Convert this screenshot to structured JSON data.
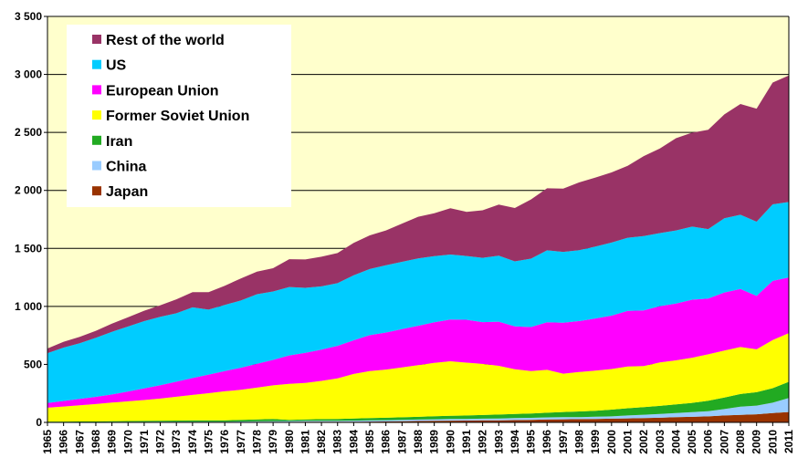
{
  "chart_data": {
    "type": "area",
    "stacked": true,
    "title": "",
    "xlabel": "",
    "ylabel": "",
    "ylim": [
      0,
      3500
    ],
    "yticks": [
      0,
      500,
      1000,
      1500,
      2000,
      2500,
      3000,
      3500
    ],
    "ytick_labels": [
      "0",
      "500",
      "1 000",
      "1 500",
      "2 000",
      "2 500",
      "3 000",
      "3 500"
    ],
    "grid": "horizontal",
    "legend_position": "top-left",
    "plot_background": "#ffffcc",
    "x": [
      "1965",
      "1966",
      "1967",
      "1968",
      "1969",
      "1970",
      "1971",
      "1972",
      "1973",
      "1974",
      "1975",
      "1976",
      "1977",
      "1978",
      "1979",
      "1980",
      "1981",
      "1982",
      "1983",
      "1984",
      "1985",
      "1986",
      "1987",
      "1988",
      "1989",
      "1990",
      "1991",
      "1992",
      "1993",
      "1994",
      "1995",
      "1996",
      "1997",
      "1998",
      "1999",
      "2000",
      "2001",
      "2002",
      "2003",
      "2004",
      "2005",
      "2006",
      "2007",
      "2008",
      "2009",
      "2010",
      "2011"
    ],
    "series": [
      {
        "name": "Japan",
        "color": "#993300",
        "values": [
          2,
          2,
          2,
          2,
          3,
          3,
          3,
          3,
          3,
          3,
          3,
          3,
          4,
          5,
          5,
          5,
          6,
          6,
          6,
          6,
          7,
          8,
          10,
          12,
          13,
          15,
          16,
          17,
          18,
          20,
          22,
          25,
          27,
          28,
          30,
          32,
          35,
          38,
          40,
          45,
          48,
          52,
          60,
          65,
          70,
          80,
          90
        ]
      },
      {
        "name": "China",
        "color": "#99ccff",
        "values": [
          1,
          1,
          1,
          1,
          2,
          2,
          2,
          3,
          3,
          3,
          3,
          3,
          4,
          5,
          6,
          7,
          7,
          8,
          8,
          9,
          10,
          11,
          12,
          12,
          14,
          14,
          14,
          15,
          16,
          17,
          17,
          18,
          19,
          18,
          19,
          20,
          25,
          28,
          32,
          35,
          40,
          45,
          55,
          70,
          75,
          90,
          120
        ]
      },
      {
        "name": "Iran",
        "color": "#22aa22",
        "values": [
          4,
          4,
          5,
          5,
          6,
          7,
          8,
          9,
          10,
          11,
          11,
          12,
          13,
          15,
          18,
          10,
          12,
          14,
          16,
          18,
          20,
          21,
          22,
          24,
          26,
          28,
          30,
          32,
          34,
          36,
          38,
          40,
          44,
          48,
          52,
          58,
          62,
          65,
          70,
          75,
          80,
          90,
          100,
          110,
          115,
          125,
          140
        ]
      },
      {
        "name": "Former Soviet Union",
        "color": "#ffff00",
        "values": [
          120,
          130,
          140,
          150,
          160,
          170,
          180,
          190,
          205,
          220,
          235,
          250,
          260,
          275,
          290,
          310,
          315,
          330,
          350,
          385,
          405,
          415,
          430,
          445,
          460,
          470,
          455,
          440,
          420,
          385,
          365,
          370,
          330,
          340,
          345,
          350,
          360,
          355,
          375,
          380,
          390,
          400,
          405,
          405,
          370,
          415,
          420
        ]
      },
      {
        "name": "European Union",
        "color": "#ff00ff",
        "values": [
          40,
          48,
          55,
          62,
          70,
          85,
          100,
          115,
          130,
          145,
          160,
          175,
          190,
          205,
          220,
          245,
          260,
          270,
          280,
          290,
          310,
          320,
          330,
          340,
          350,
          360,
          370,
          360,
          380,
          370,
          380,
          410,
          440,
          440,
          450,
          460,
          480,
          480,
          485,
          490,
          500,
          480,
          500,
          500,
          460,
          510,
          480
        ]
      },
      {
        "name": "US",
        "color": "#00ccff",
        "values": [
          430,
          460,
          480,
          510,
          540,
          560,
          580,
          590,
          590,
          610,
          560,
          570,
          580,
          600,
          590,
          590,
          560,
          545,
          540,
          560,
          570,
          580,
          580,
          580,
          570,
          560,
          550,
          555,
          570,
          560,
          590,
          620,
          610,
          610,
          620,
          630,
          630,
          640,
          630,
          630,
          630,
          600,
          640,
          640,
          640,
          660,
          650
        ]
      },
      {
        "name": "Rest of the world",
        "color": "#993366",
        "values": [
          40,
          50,
          55,
          60,
          70,
          80,
          90,
          100,
          120,
          130,
          150,
          165,
          190,
          195,
          200,
          240,
          245,
          255,
          260,
          280,
          290,
          300,
          330,
          360,
          370,
          400,
          380,
          410,
          440,
          460,
          510,
          535,
          545,
          585,
          595,
          605,
          620,
          690,
          730,
          795,
          810,
          855,
          895,
          955,
          975,
          1050,
          1090
        ]
      }
    ]
  }
}
